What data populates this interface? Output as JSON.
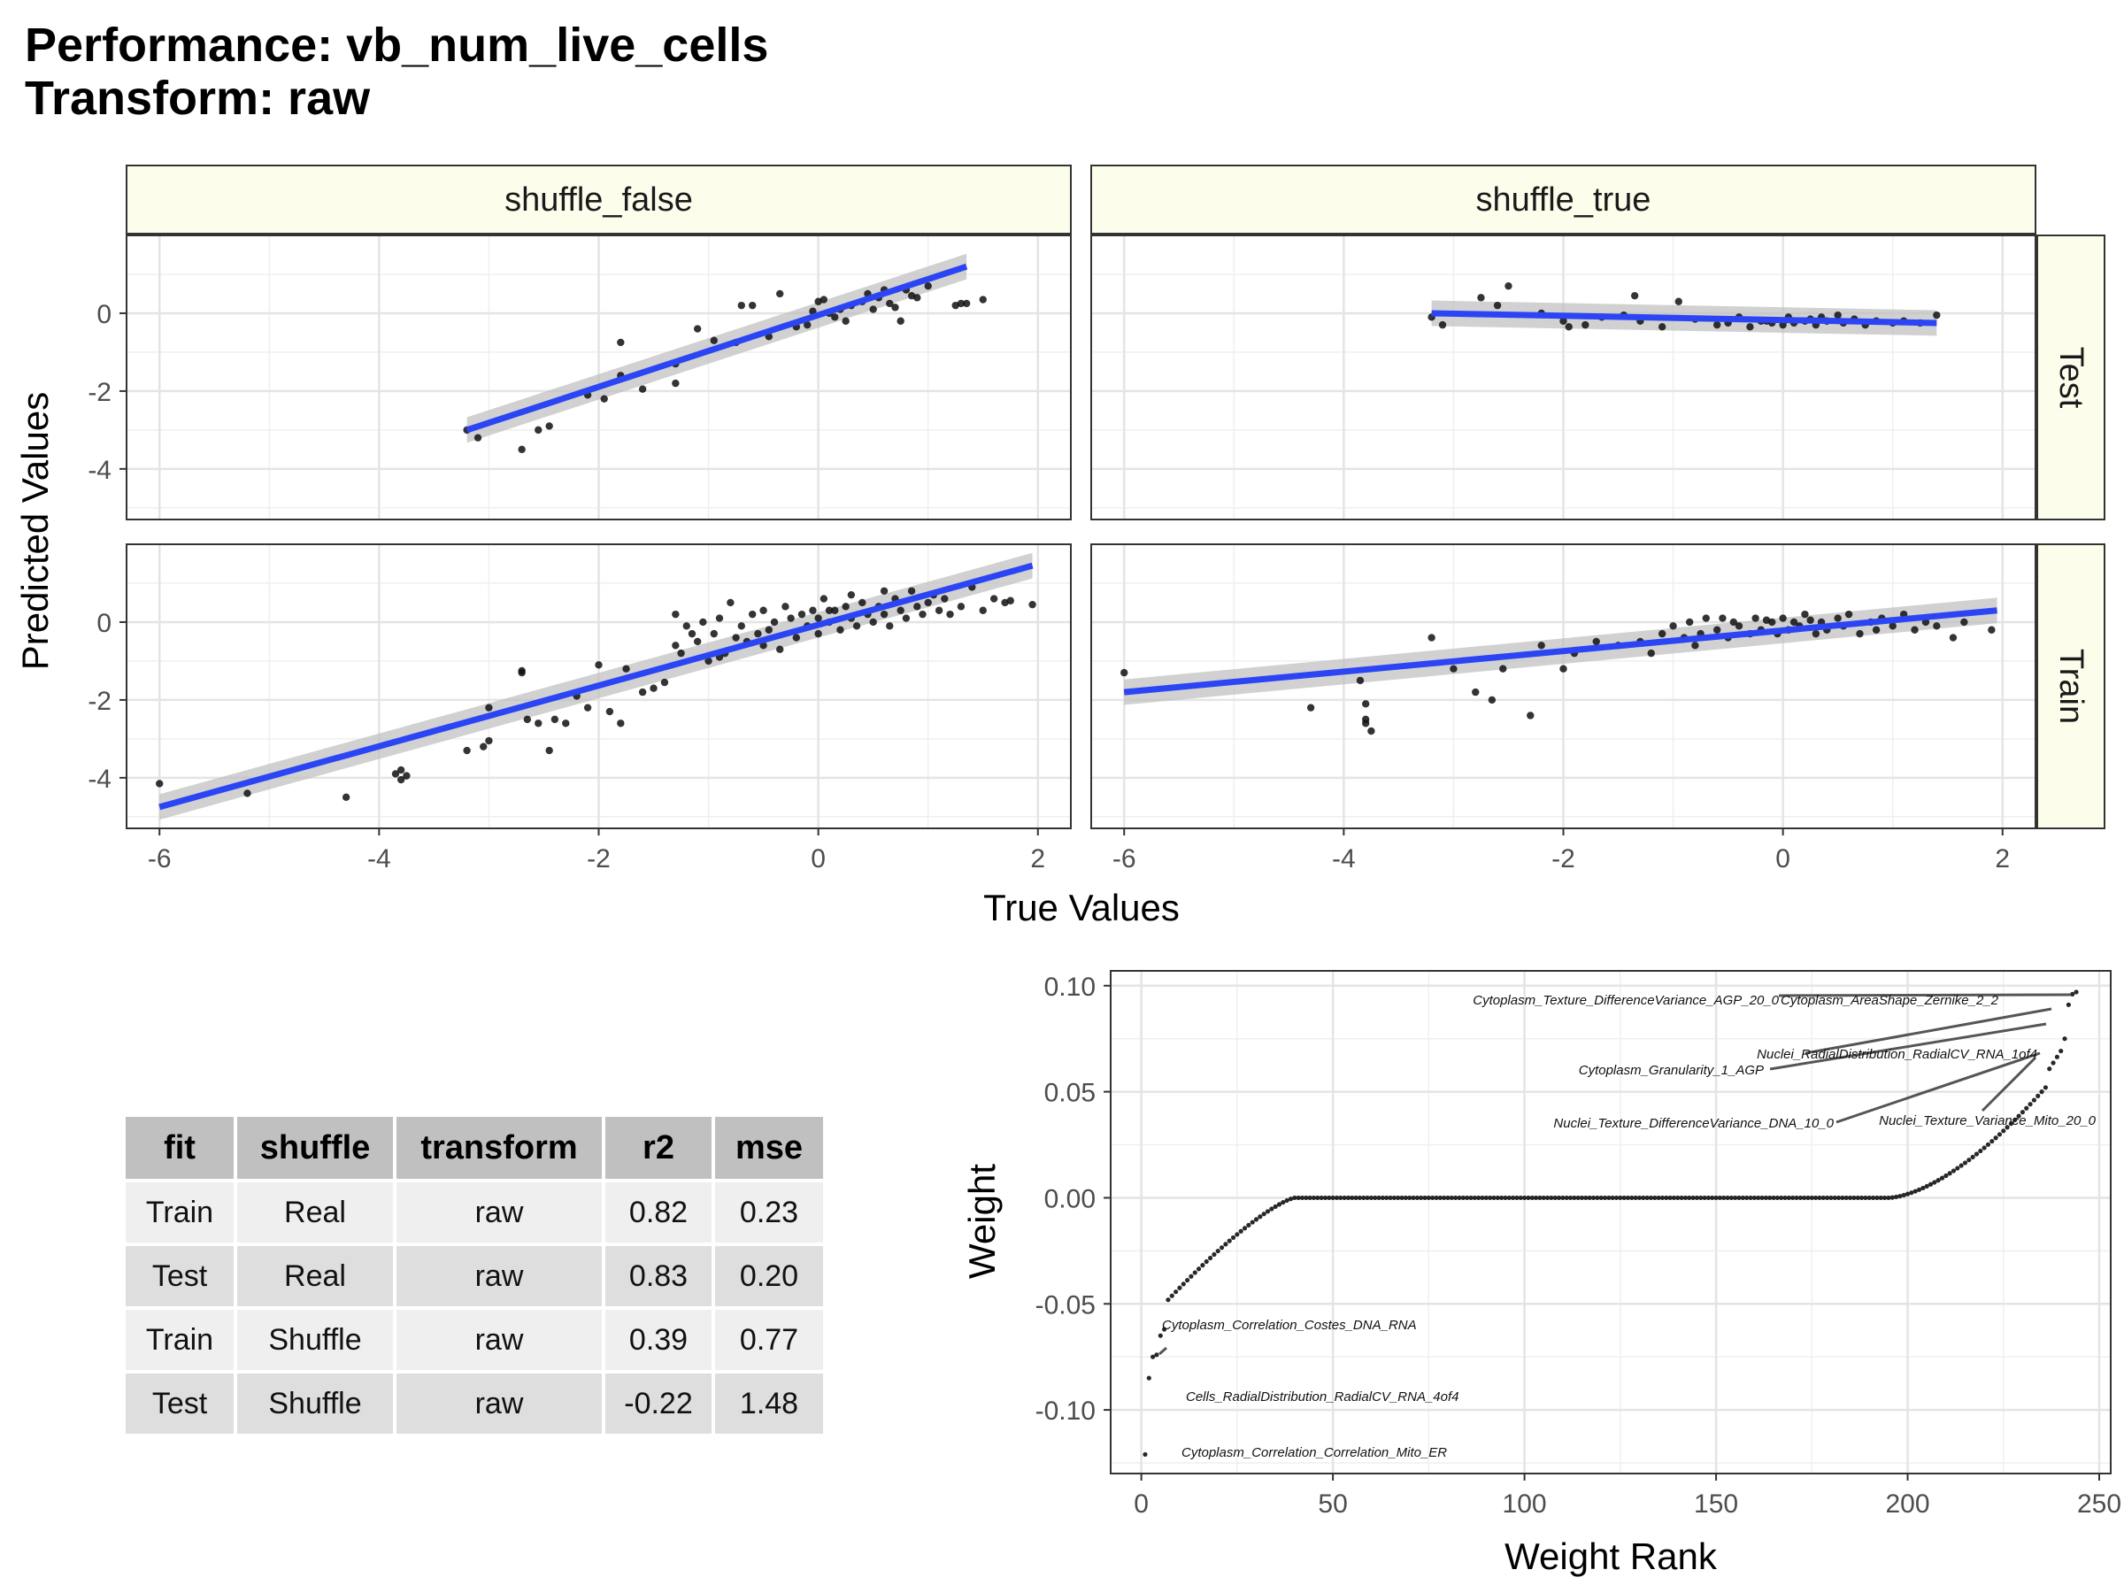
{
  "title_line1": "Performance: vb_num_live_cells",
  "title_line2": "Transform: raw",
  "facet_chart": {
    "type": "scatter",
    "xlabel": "True Values",
    "ylabel": "Predicted Values",
    "column_strips": [
      "shuffle_false",
      "shuffle_true"
    ],
    "row_strips": [
      "Test",
      "Train"
    ],
    "xlim": [
      -6.3,
      2.3
    ],
    "ylim": [
      -5.3,
      2.0
    ],
    "xticks": [
      "-6",
      "-4",
      "-2",
      "0",
      "2"
    ],
    "yticks": [
      "-4",
      "-2",
      "0"
    ],
    "colors": {
      "points": "#111111",
      "fit_line": "#2b45f5",
      "band": "#bdbdbd",
      "strip": "#fdfdec",
      "grid": "#e4e4e4"
    },
    "panels": [
      {
        "column": "shuffle_false",
        "row": "Test",
        "fit": {
          "x": [
            -3.2,
            1.35
          ],
          "y": [
            -3.0,
            1.2
          ]
        },
        "points": [
          [
            -3.2,
            -3.0
          ],
          [
            -3.1,
            -3.2
          ],
          [
            -2.7,
            -3.5
          ],
          [
            -2.55,
            -3.0
          ],
          [
            -2.45,
            -2.9
          ],
          [
            -2.1,
            -2.1
          ],
          [
            -1.95,
            -2.2
          ],
          [
            -1.8,
            -1.6
          ],
          [
            -1.8,
            -0.75
          ],
          [
            -1.6,
            -1.95
          ],
          [
            -1.3,
            -1.8
          ],
          [
            -1.3,
            -1.3
          ],
          [
            -1.1,
            -0.4
          ],
          [
            -0.95,
            -0.7
          ],
          [
            -0.75,
            -0.75
          ],
          [
            -0.7,
            0.2
          ],
          [
            -0.6,
            0.2
          ],
          [
            -0.45,
            -0.6
          ],
          [
            -0.35,
            0.5
          ],
          [
            -0.2,
            -0.35
          ],
          [
            -0.1,
            -0.3
          ],
          [
            0.0,
            0.3
          ],
          [
            0.05,
            0.35
          ],
          [
            0.1,
            0.0
          ],
          [
            0.15,
            -0.1
          ],
          [
            0.2,
            0.1
          ],
          [
            0.25,
            -0.2
          ],
          [
            0.3,
            0.2
          ],
          [
            0.4,
            0.3
          ],
          [
            0.45,
            0.5
          ],
          [
            0.5,
            0.1
          ],
          [
            0.55,
            0.4
          ],
          [
            0.6,
            0.6
          ],
          [
            0.65,
            0.25
          ],
          [
            0.7,
            0.15
          ],
          [
            0.75,
            -0.2
          ],
          [
            0.8,
            0.6
          ],
          [
            0.85,
            0.45
          ],
          [
            1.0,
            0.7
          ],
          [
            1.25,
            0.2
          ],
          [
            1.3,
            0.25
          ],
          [
            1.5,
            0.35
          ],
          [
            1.35,
            0.25
          ],
          [
            -0.05,
            0.05
          ],
          [
            0.9,
            0.4
          ]
        ]
      },
      {
        "column": "shuffle_true",
        "row": "Test",
        "fit": {
          "x": [
            -3.2,
            1.4
          ],
          "y": [
            0.0,
            -0.25
          ]
        },
        "points": [
          [
            -3.2,
            -0.1
          ],
          [
            -3.1,
            -0.3
          ],
          [
            -2.75,
            0.4
          ],
          [
            -2.6,
            0.2
          ],
          [
            -2.5,
            0.7
          ],
          [
            -2.2,
            0.0
          ],
          [
            -2.0,
            -0.2
          ],
          [
            -1.95,
            -0.35
          ],
          [
            -1.8,
            -0.3
          ],
          [
            -1.65,
            -0.1
          ],
          [
            -1.45,
            -0.05
          ],
          [
            -1.35,
            0.45
          ],
          [
            -1.3,
            -0.2
          ],
          [
            -1.1,
            -0.35
          ],
          [
            -0.95,
            0.3
          ],
          [
            -0.8,
            -0.15
          ],
          [
            -0.6,
            -0.3
          ],
          [
            -0.5,
            -0.25
          ],
          [
            -0.4,
            -0.1
          ],
          [
            -0.3,
            -0.35
          ],
          [
            -0.2,
            -0.2
          ],
          [
            -0.1,
            -0.25
          ],
          [
            0.0,
            -0.3
          ],
          [
            0.05,
            -0.1
          ],
          [
            0.1,
            -0.25
          ],
          [
            0.2,
            -0.2
          ],
          [
            0.25,
            -0.15
          ],
          [
            0.3,
            -0.3
          ],
          [
            0.4,
            -0.2
          ],
          [
            0.5,
            -0.05
          ],
          [
            0.55,
            -0.25
          ],
          [
            0.65,
            -0.15
          ],
          [
            0.75,
            -0.3
          ],
          [
            0.85,
            -0.2
          ],
          [
            1.0,
            -0.25
          ],
          [
            1.1,
            -0.2
          ],
          [
            1.25,
            -0.25
          ],
          [
            1.4,
            -0.05
          ],
          [
            -0.15,
            -0.2
          ],
          [
            0.35,
            -0.1
          ]
        ]
      },
      {
        "column": "shuffle_false",
        "row": "Train",
        "fit": {
          "x": [
            -6.0,
            1.95
          ],
          "y": [
            -4.75,
            1.45
          ]
        },
        "points": [
          [
            -6.0,
            -4.15
          ],
          [
            -5.2,
            -4.4
          ],
          [
            -4.3,
            -4.5
          ],
          [
            -3.85,
            -3.9
          ],
          [
            -3.8,
            -4.05
          ],
          [
            -3.8,
            -3.8
          ],
          [
            -3.75,
            -3.95
          ],
          [
            -3.2,
            -3.3
          ],
          [
            -3.05,
            -3.2
          ],
          [
            -3.0,
            -3.05
          ],
          [
            -3.0,
            -2.2
          ],
          [
            -2.7,
            -1.3
          ],
          [
            -2.7,
            -1.25
          ],
          [
            -2.65,
            -2.5
          ],
          [
            -2.55,
            -2.6
          ],
          [
            -2.45,
            -3.3
          ],
          [
            -2.4,
            -2.5
          ],
          [
            -2.3,
            -2.6
          ],
          [
            -2.2,
            -1.9
          ],
          [
            -2.1,
            -2.2
          ],
          [
            -2.0,
            -1.1
          ],
          [
            -1.9,
            -2.3
          ],
          [
            -1.8,
            -2.6
          ],
          [
            -1.75,
            -1.2
          ],
          [
            -1.6,
            -1.8
          ],
          [
            -1.5,
            -1.7
          ],
          [
            -1.4,
            -1.55
          ],
          [
            -1.3,
            -0.6
          ],
          [
            -1.25,
            -0.8
          ],
          [
            -1.2,
            -0.1
          ],
          [
            -1.15,
            -0.3
          ],
          [
            -1.1,
            -0.5
          ],
          [
            -1.05,
            0.0
          ],
          [
            -1.0,
            -1.0
          ],
          [
            -0.95,
            -0.3
          ],
          [
            -0.9,
            0.1
          ],
          [
            -0.85,
            -0.8
          ],
          [
            -0.8,
            0.5
          ],
          [
            -0.75,
            -0.4
          ],
          [
            -0.7,
            -0.1
          ],
          [
            -0.65,
            -0.5
          ],
          [
            -0.6,
            0.2
          ],
          [
            -0.55,
            -0.3
          ],
          [
            -0.5,
            0.3
          ],
          [
            -0.45,
            -0.2
          ],
          [
            -0.4,
            0.0
          ],
          [
            -0.35,
            -0.7
          ],
          [
            -0.3,
            0.4
          ],
          [
            -0.25,
            0.1
          ],
          [
            -0.2,
            -0.4
          ],
          [
            -0.15,
            0.2
          ],
          [
            -0.1,
            -0.1
          ],
          [
            -0.05,
            0.3
          ],
          [
            0.0,
            0.1
          ],
          [
            0.0,
            -0.3
          ],
          [
            0.05,
            0.6
          ],
          [
            0.1,
            0.0
          ],
          [
            0.15,
            0.3
          ],
          [
            0.2,
            -0.2
          ],
          [
            0.25,
            0.4
          ],
          [
            0.3,
            0.1
          ],
          [
            0.35,
            -0.1
          ],
          [
            0.4,
            0.5
          ],
          [
            0.45,
            0.2
          ],
          [
            0.5,
            0.0
          ],
          [
            0.55,
            0.4
          ],
          [
            0.6,
            0.2
          ],
          [
            0.65,
            -0.1
          ],
          [
            0.7,
            0.6
          ],
          [
            0.75,
            0.3
          ],
          [
            0.8,
            0.1
          ],
          [
            0.85,
            0.8
          ],
          [
            0.9,
            0.4
          ],
          [
            0.95,
            0.2
          ],
          [
            1.0,
            0.5
          ],
          [
            1.05,
            0.7
          ],
          [
            1.1,
            0.3
          ],
          [
            1.15,
            0.6
          ],
          [
            1.2,
            0.2
          ],
          [
            1.3,
            0.4
          ],
          [
            1.4,
            0.9
          ],
          [
            1.5,
            0.3
          ],
          [
            1.6,
            0.6
          ],
          [
            1.7,
            0.5
          ],
          [
            1.75,
            0.55
          ],
          [
            1.95,
            0.45
          ],
          [
            -1.3,
            0.2
          ],
          [
            -0.9,
            -0.9
          ],
          [
            0.3,
            0.7
          ],
          [
            0.6,
            0.8
          ],
          [
            -0.5,
            -0.6
          ],
          [
            0.1,
            0.3
          ]
        ]
      },
      {
        "column": "shuffle_true",
        "row": "Train",
        "fit": {
          "x": [
            -6.0,
            1.95
          ],
          "y": [
            -1.8,
            0.3
          ]
        },
        "points": [
          [
            -6.0,
            -1.3
          ],
          [
            -4.3,
            -2.2
          ],
          [
            -3.85,
            -1.5
          ],
          [
            -3.8,
            -2.1
          ],
          [
            -3.8,
            -2.5
          ],
          [
            -3.75,
            -2.8
          ],
          [
            -3.8,
            -2.6
          ],
          [
            -3.2,
            -0.4
          ],
          [
            -3.0,
            -1.2
          ],
          [
            -2.8,
            -1.8
          ],
          [
            -2.65,
            -2.0
          ],
          [
            -2.55,
            -1.2
          ],
          [
            -2.3,
            -2.4
          ],
          [
            -2.2,
            -0.6
          ],
          [
            -2.0,
            -1.2
          ],
          [
            -1.9,
            -0.8
          ],
          [
            -1.7,
            -0.5
          ],
          [
            -1.5,
            -0.6
          ],
          [
            -1.3,
            -0.5
          ],
          [
            -1.2,
            -0.8
          ],
          [
            -1.1,
            -0.3
          ],
          [
            -1.0,
            -0.1
          ],
          [
            -0.9,
            -0.4
          ],
          [
            -0.85,
            0.0
          ],
          [
            -0.8,
            -0.6
          ],
          [
            -0.75,
            -0.3
          ],
          [
            -0.7,
            0.1
          ],
          [
            -0.6,
            -0.2
          ],
          [
            -0.5,
            -0.4
          ],
          [
            -0.45,
            0.0
          ],
          [
            -0.4,
            -0.1
          ],
          [
            -0.3,
            -0.3
          ],
          [
            -0.25,
            0.1
          ],
          [
            -0.2,
            -0.2
          ],
          [
            -0.1,
            0.0
          ],
          [
            -0.05,
            -0.3
          ],
          [
            0.0,
            0.1
          ],
          [
            0.05,
            -0.2
          ],
          [
            0.1,
            0.0
          ],
          [
            0.15,
            -0.1
          ],
          [
            0.2,
            0.2
          ],
          [
            0.3,
            -0.3
          ],
          [
            0.35,
            0.0
          ],
          [
            0.4,
            -0.2
          ],
          [
            0.5,
            0.1
          ],
          [
            0.55,
            -0.1
          ],
          [
            0.6,
            0.2
          ],
          [
            0.7,
            -0.3
          ],
          [
            0.8,
            0.0
          ],
          [
            0.85,
            -0.2
          ],
          [
            0.9,
            0.1
          ],
          [
            1.0,
            -0.1
          ],
          [
            1.1,
            0.2
          ],
          [
            1.2,
            -0.2
          ],
          [
            1.3,
            0.0
          ],
          [
            1.4,
            -0.1
          ],
          [
            1.55,
            -0.4
          ],
          [
            1.65,
            0.0
          ],
          [
            1.9,
            -0.2
          ],
          [
            -0.55,
            0.1
          ],
          [
            0.25,
            0.05
          ],
          [
            -0.15,
            0.05
          ]
        ]
      }
    ]
  },
  "weight_chart": {
    "type": "scatter",
    "xlabel": "Weight Rank",
    "ylabel": "Weight",
    "xlim": [
      -8,
      253
    ],
    "ylim": [
      -0.13,
      0.107
    ],
    "xticks": [
      "0",
      "50",
      "100",
      "150",
      "200",
      "250"
    ],
    "yticks": [
      "0.10",
      "0.05",
      "0.00",
      "-0.05",
      "-0.10"
    ],
    "n_points": 244,
    "labels": [
      "Cytoplasm_Texture_DifferenceVariance_AGP_20_0",
      "Cytoplasm_AreaShape_Zernike_2_2",
      "Nuclei_RadialDistribution_RadialCV_RNA_1of4",
      "Cytoplasm_Granularity_1_AGP",
      "Nuclei_Texture_DifferenceVariance_DNA_10_0",
      "Nuclei_Texture_Variance_Mito_20_0",
      "Cytoplasm_Correlation_Costes_DNA_RNA",
      "Cells_RadialDistribution_RadialCV_RNA_4of4",
      "Cytoplasm_Correlation_Correlation_Mito_ER"
    ]
  },
  "table": {
    "headers": [
      "fit",
      "shuffle",
      "transform",
      "r2",
      "mse"
    ],
    "rows": [
      [
        "Train",
        "Real",
        "raw",
        "0.82",
        "0.23"
      ],
      [
        "Test",
        "Real",
        "raw",
        "0.83",
        "0.20"
      ],
      [
        "Train",
        "Shuffle",
        "raw",
        "0.39",
        "0.77"
      ],
      [
        "Test",
        "Shuffle",
        "raw",
        "-0.22",
        "1.48"
      ]
    ]
  }
}
